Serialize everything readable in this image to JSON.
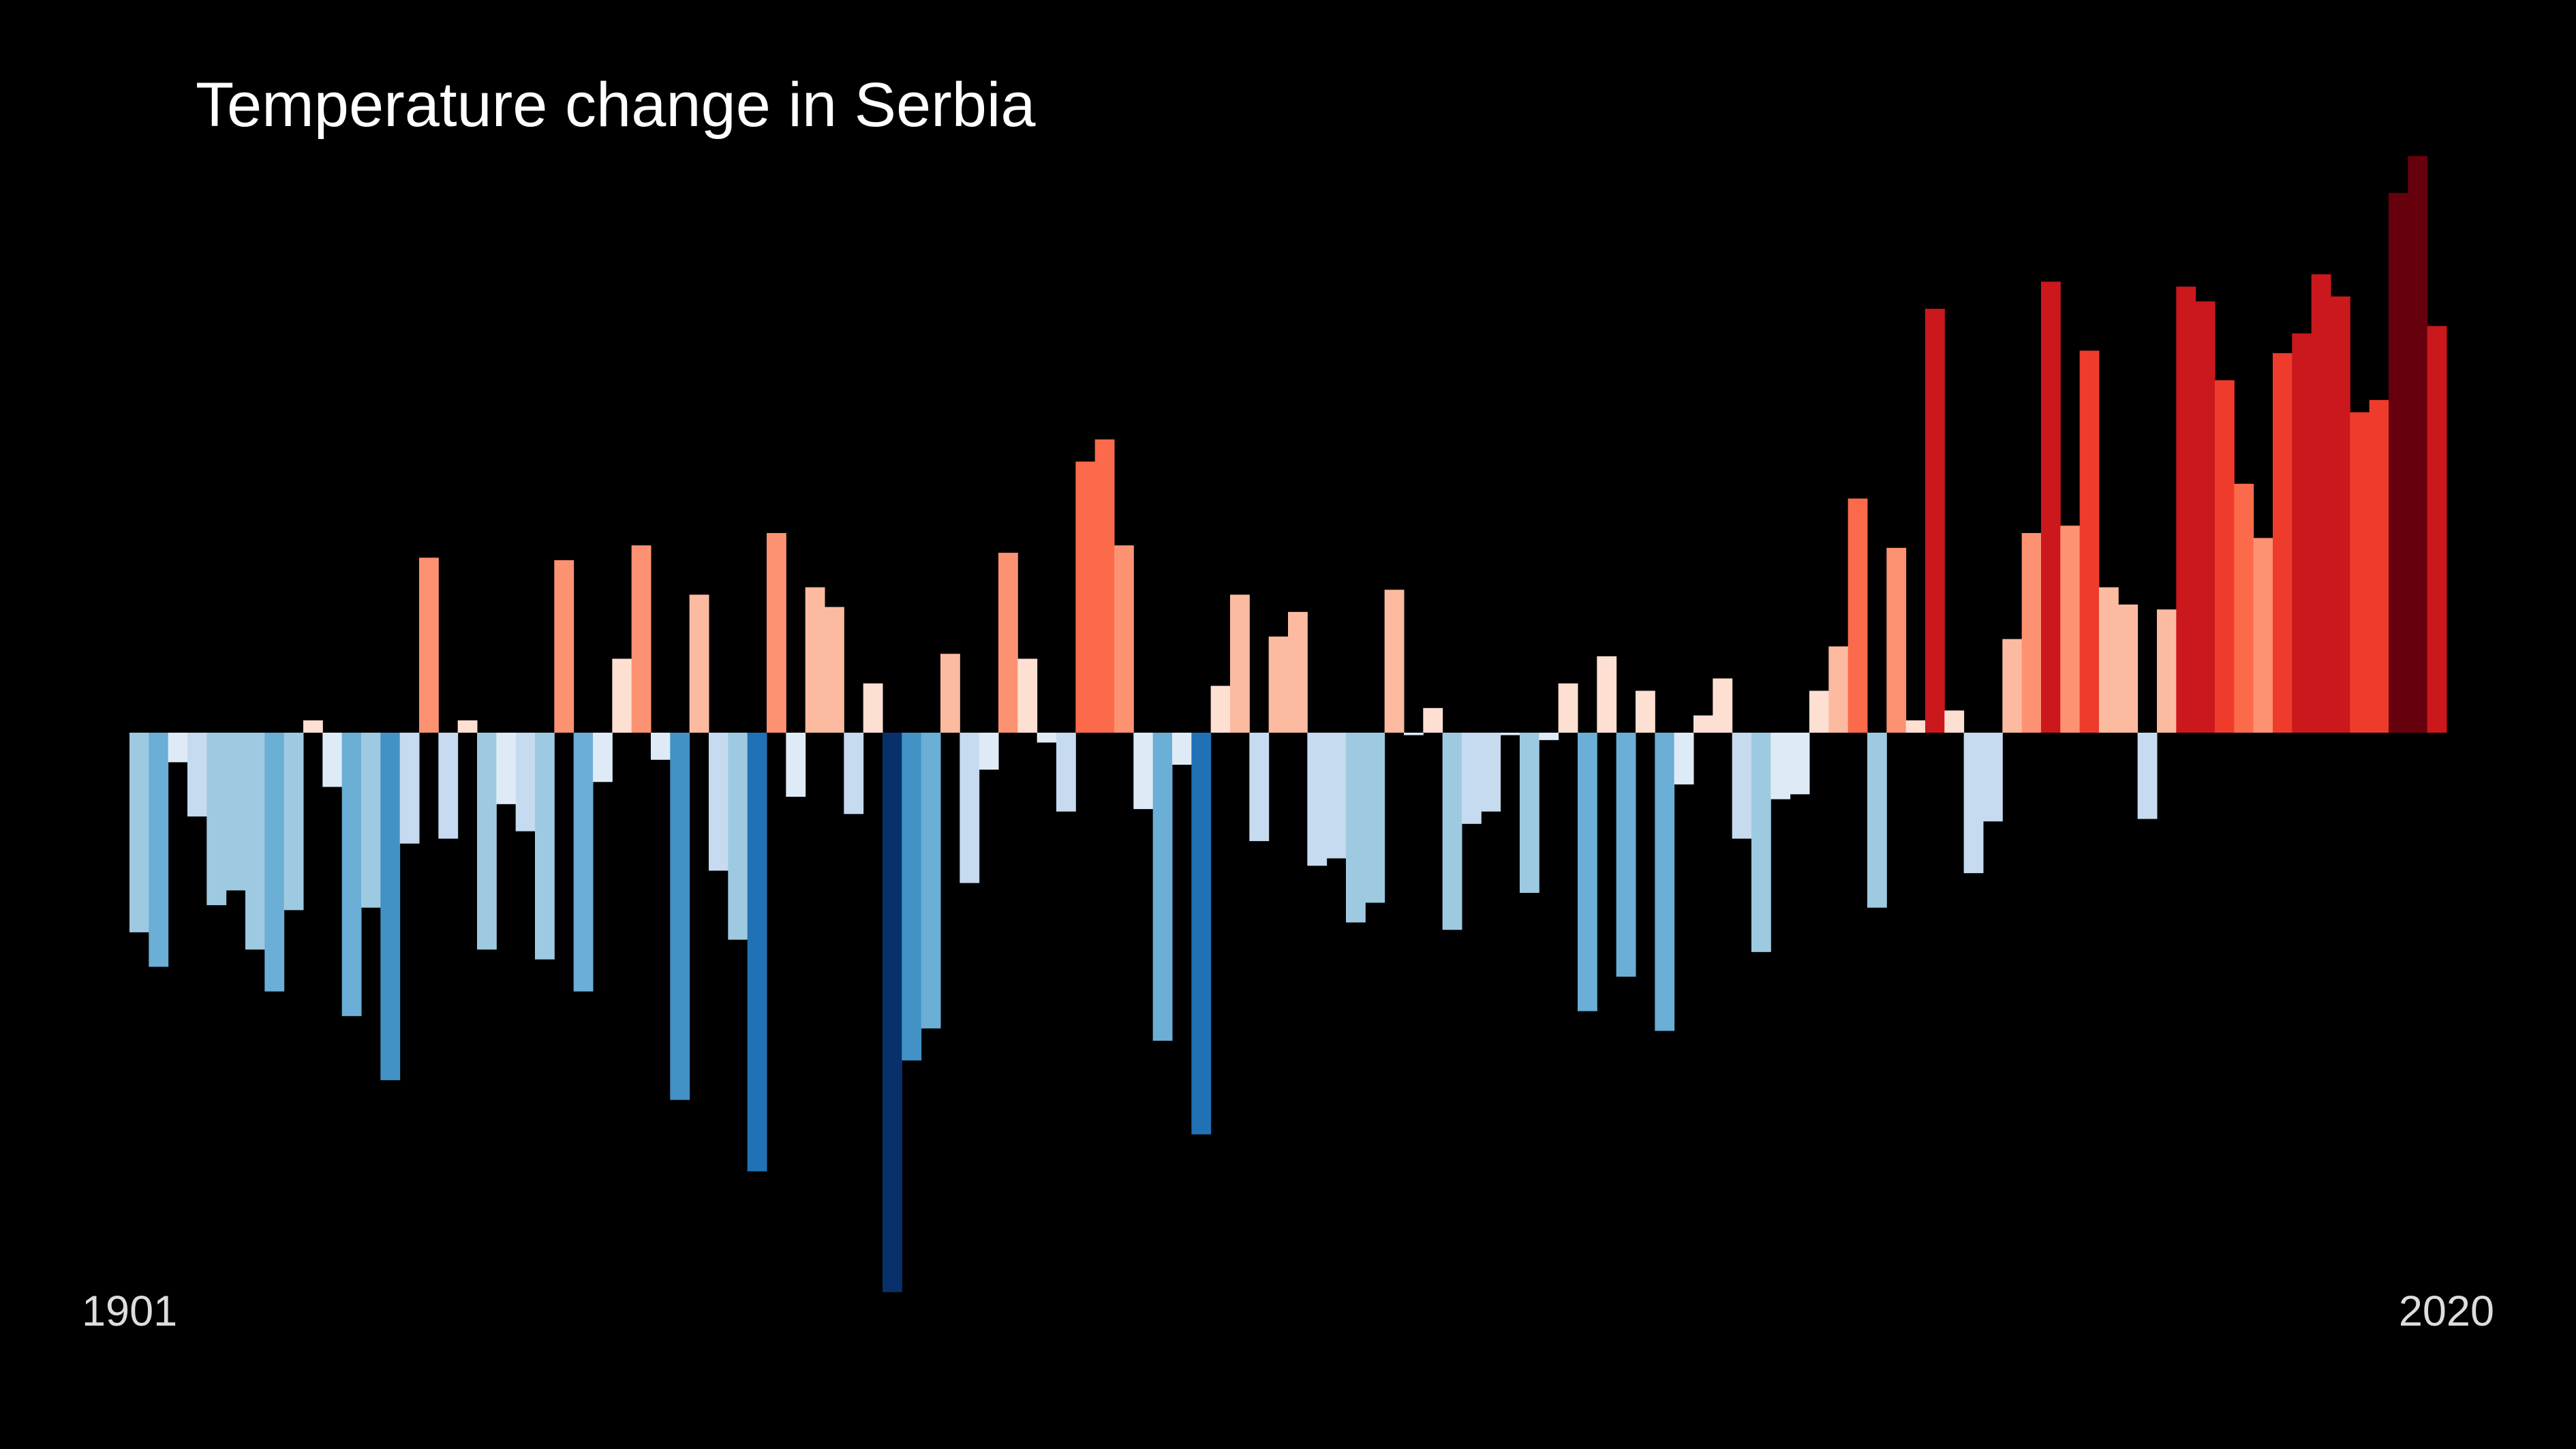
{
  "chart_data": {
    "type": "bar",
    "title": "Temperature change in Serbia",
    "categories": [
      "1901",
      null,
      null,
      null,
      null,
      null,
      null,
      null,
      null,
      null,
      null,
      null,
      null,
      null,
      null,
      null,
      null,
      null,
      null,
      null,
      null,
      null,
      null,
      null,
      null,
      null,
      null,
      null,
      null,
      null,
      null,
      null,
      null,
      null,
      null,
      null,
      null,
      null,
      null,
      null,
      null,
      null,
      null,
      null,
      null,
      null,
      null,
      null,
      null,
      null,
      null,
      null,
      null,
      null,
      null,
      null,
      null,
      null,
      null,
      null,
      null,
      null,
      null,
      null,
      null,
      null,
      null,
      null,
      null,
      null,
      null,
      null,
      null,
      null,
      null,
      null,
      null,
      null,
      null,
      null,
      null,
      null,
      null,
      null,
      null,
      null,
      null,
      null,
      null,
      null,
      null,
      null,
      null,
      null,
      null,
      null,
      null,
      null,
      null,
      null,
      null,
      null,
      null,
      null,
      null,
      null,
      null,
      null,
      null,
      null,
      null,
      null,
      null,
      null,
      null,
      null,
      null,
      null,
      null,
      "2020"
    ],
    "values": [
      -0.81,
      -0.95,
      -0.12,
      -0.34,
      -0.7,
      -0.64,
      -0.88,
      -1.05,
      -0.72,
      0.05,
      -0.22,
      -1.15,
      -0.71,
      -1.41,
      -0.45,
      0.71,
      -0.43,
      0.05,
      -0.88,
      -0.29,
      -0.4,
      -0.92,
      0.7,
      -1.05,
      -0.2,
      0.3,
      0.76,
      -0.11,
      -1.49,
      0.56,
      -0.56,
      -0.84,
      -1.78,
      0.81,
      -0.26,
      0.59,
      0.51,
      -0.33,
      0.2,
      -2.27,
      -1.33,
      -1.2,
      0.32,
      -0.61,
      -0.15,
      0.73,
      0.3,
      -0.04,
      -0.32,
      1.1,
      1.19,
      0.76,
      -0.31,
      -1.25,
      -0.13,
      -1.63,
      0.19,
      0.56,
      -0.44,
      0.39,
      0.49,
      -0.54,
      -0.51,
      -0.77,
      -0.69,
      0.58,
      -0.01,
      0.1,
      -0.8,
      -0.37,
      -0.32,
      -0.01,
      -0.65,
      -0.03,
      0.2,
      -1.13,
      0.31,
      -0.99,
      0.17,
      -1.21,
      -0.21,
      0.07,
      0.22,
      -0.43,
      -0.89,
      -0.27,
      -0.25,
      0.17,
      0.35,
      0.95,
      -0.71,
      0.75,
      0.05,
      1.72,
      0.09,
      -0.57,
      -0.36,
      0.38,
      0.81,
      1.83,
      0.84,
      1.55,
      0.59,
      0.52,
      -0.35,
      0.5,
      1.81,
      1.75,
      1.43,
      1.01,
      0.79,
      1.54,
      1.62,
      1.86,
      1.77,
      1.3,
      1.35,
      2.19,
      2.34,
      1.65
    ],
    "colors": [
      "#08306b",
      "#08519c",
      "#2171b5",
      "#4292c6",
      "#6baed6",
      "#9ecae1",
      "#c6dbef",
      "#deebf7",
      "#fee0d2",
      "#fcbba1",
      "#fc9272",
      "#fb6a4a",
      "#ef3b2c",
      "#cb181d",
      "#a50f15",
      "#67000d"
    ],
    "ylim": [
      -2.5,
      2.5
    ]
  }
}
